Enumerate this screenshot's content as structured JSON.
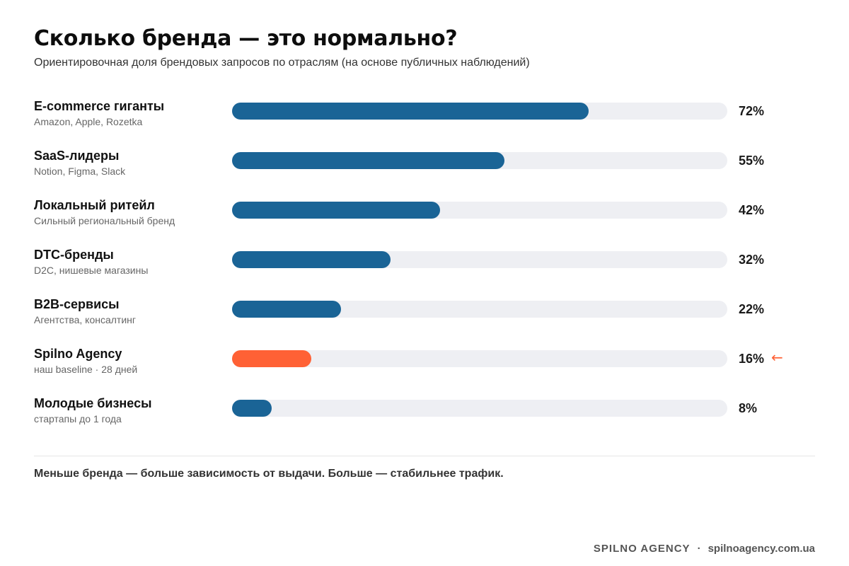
{
  "header": {
    "title": "Сколько бренда — это нормально?",
    "subtitle": "Ориентировочная доля брендовых запросов по отраслям (на основе публичных наблюдений)"
  },
  "chart_data": {
    "type": "bar",
    "orientation": "horizontal",
    "xlim": [
      0,
      100
    ],
    "unit": "%",
    "grid": false,
    "colors": {
      "default": "#1a6496",
      "highlight": "#ff6135",
      "track": "#eeeff3"
    },
    "categories": [
      "E-commerce гиганты",
      "SaaS-лидеры",
      "Локальный ритейл",
      "DTC-бренды",
      "B2B-сервисы",
      "Spilno Agency",
      "Молодые бизнесы"
    ],
    "values": [
      72,
      55,
      42,
      32,
      22,
      16,
      8
    ],
    "rows": [
      {
        "name": "E-commerce гиганты",
        "desc": "Amazon, Apple, Rozetka",
        "value": 72,
        "label": "72%",
        "highlight": false
      },
      {
        "name": "SaaS-лидеры",
        "desc": "Notion, Figma, Slack",
        "value": 55,
        "label": "55%",
        "highlight": false
      },
      {
        "name": "Локальный ритейл",
        "desc": "Сильный региональный бренд",
        "value": 42,
        "label": "42%",
        "highlight": false
      },
      {
        "name": "DTC-бренды",
        "desc": "D2C, нишевые магазины",
        "value": 32,
        "label": "32%",
        "highlight": false
      },
      {
        "name": "B2B-сервисы",
        "desc": "Агентства, консалтинг",
        "value": 22,
        "label": "22%",
        "highlight": false
      },
      {
        "name": "Spilno Agency",
        "desc": "наш baseline · 28 дней",
        "value": 16,
        "label": "16%",
        "highlight": true,
        "marker": "←"
      },
      {
        "name": "Молодые бизнесы",
        "desc": "стартапы до 1 года",
        "value": 8,
        "label": "8%",
        "highlight": false
      }
    ]
  },
  "caption": "Меньше бренда — больше зависимость от выдачи. Больше — стабильнее трафик.",
  "footer": {
    "brand": "SPILNO AGENCY",
    "separator": "·",
    "site": "spilnoagency.com.ua"
  }
}
